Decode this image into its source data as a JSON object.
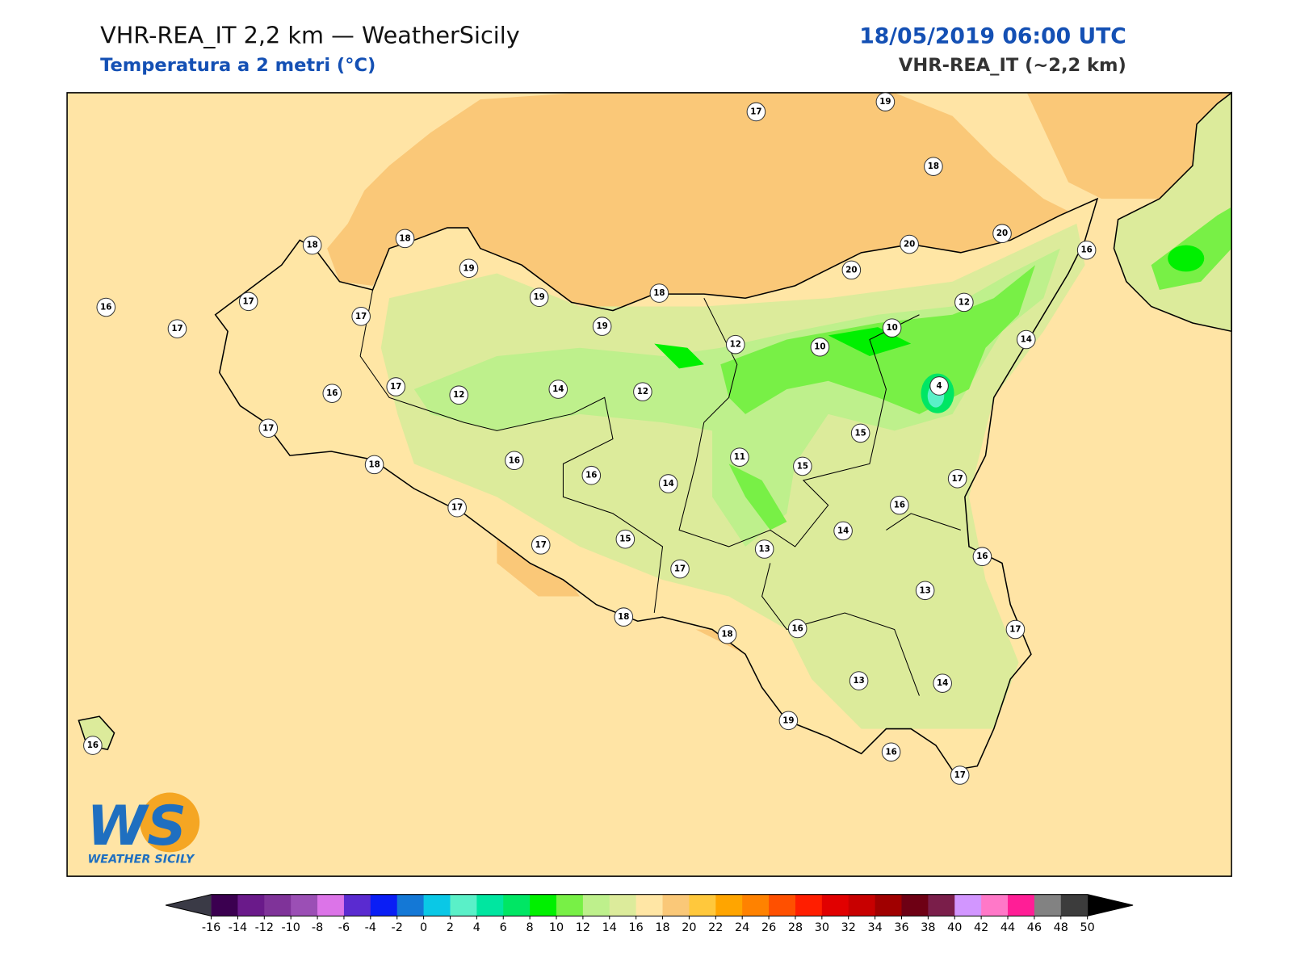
{
  "header": {
    "title": "VHR-REA_IT 2,2 km — WeatherSicily",
    "subtitle": "Temperatura a 2 metri (°C)",
    "datetime": "18/05/2019 06:00 UTC",
    "model": "VHR-REA_IT (~2,2 km)"
  },
  "stations": [
    17,
    19,
    18,
    20,
    20,
    16,
    20,
    12,
    10,
    14,
    10,
    12,
    18,
    19,
    19,
    19,
    18,
    18,
    17,
    17,
    16,
    17,
    16,
    17,
    12,
    14,
    12,
    4,
    15,
    11,
    15,
    17,
    16,
    16,
    14,
    17,
    18,
    17,
    16,
    14,
    15,
    17,
    13,
    16,
    17,
    13,
    18,
    18,
    16,
    17,
    13,
    14,
    19,
    16,
    17,
    16
  ],
  "colorbar": {
    "ticks": [
      -16,
      -14,
      -12,
      -10,
      -8,
      -6,
      -4,
      -2,
      0,
      2,
      4,
      6,
      8,
      10,
      12,
      14,
      16,
      18,
      20,
      22,
      24,
      26,
      28,
      30,
      32,
      34,
      36,
      38,
      40,
      42,
      44,
      46,
      48,
      50
    ],
    "colors": [
      "#3b0050",
      "#6a1a8a",
      "#7f3399",
      "#9b4fb5",
      "#dc74e8",
      "#5a2bd0",
      "#0a1ef5",
      "#1478d6",
      "#0ac8e6",
      "#5af0c8",
      "#00e6a0",
      "#00e664",
      "#00f000",
      "#78f046",
      "#bef08c",
      "#dceb9b",
      "#ffe6a5",
      "#fac878",
      "#ffc83c",
      "#ffa500",
      "#ff8200",
      "#ff5000",
      "#ff1e00",
      "#e10000",
      "#c80000",
      "#a00000",
      "#6e0014",
      "#7a1e4a",
      "#d296ff",
      "#ff78c8",
      "#ff1e96",
      "#828282",
      "#3c3c3c"
    ],
    "under_color": "#3a3a46",
    "over_color": "#000000"
  },
  "logo": {
    "initials": "WS",
    "text": "WEATHER SICILY"
  }
}
